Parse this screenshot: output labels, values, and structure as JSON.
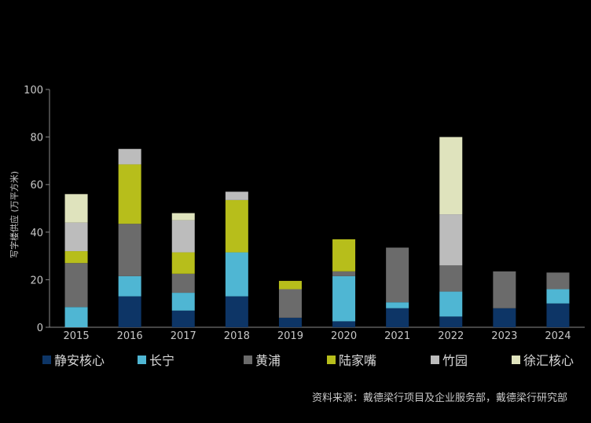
{
  "chart_data": {
    "type": "bar",
    "stacked": true,
    "categories": [
      "2015",
      "2016",
      "2017",
      "2018",
      "2019",
      "2020",
      "2021",
      "2022",
      "2023",
      "2024"
    ],
    "ylabel": "写字楼供应 (万平方米)",
    "ylim": [
      0,
      100
    ],
    "yticks": [
      0,
      20,
      40,
      60,
      80,
      100
    ],
    "grid": false,
    "legend_position": "bottom",
    "series": [
      {
        "name": "静安核心",
        "color": "#0d3566",
        "values": [
          0,
          13,
          7,
          13,
          4,
          2.5,
          8,
          4.5,
          8,
          10
        ]
      },
      {
        "name": "长宁",
        "color": "#4fb6d3",
        "values": [
          8.5,
          8.5,
          7.5,
          18.5,
          0,
          19,
          2.5,
          10.5,
          0,
          6
        ]
      },
      {
        "name": "黄浦",
        "color": "#6b6b6b",
        "values": [
          18.5,
          22,
          8,
          0,
          12,
          2,
          23,
          11,
          15.5,
          7
        ]
      },
      {
        "name": "陆家嘴",
        "color": "#b7be1b",
        "values": [
          5,
          25,
          9,
          22,
          3.5,
          13.5,
          0,
          0,
          0,
          0
        ]
      },
      {
        "name": "竹园",
        "color": "#bcbcbc",
        "values": [
          12,
          6.5,
          13.5,
          3.5,
          0,
          0,
          0,
          21.5,
          0,
          0
        ]
      },
      {
        "name": "徐汇核心",
        "color": "#dfe3bd",
        "values": [
          12,
          0,
          3,
          0,
          0,
          0,
          0,
          32.5,
          0,
          0
        ]
      }
    ]
  },
  "source_text": "资料来源：戴德梁行项目及企业服务部，戴德梁行研究部"
}
